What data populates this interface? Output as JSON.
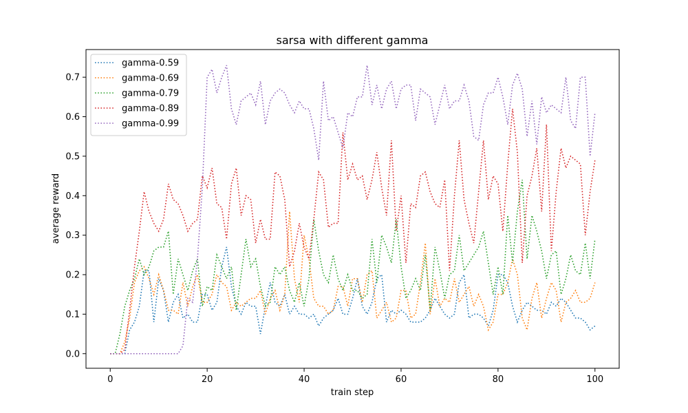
{
  "chart_data": {
    "type": "line",
    "title": "sarsa with different gamma",
    "xlabel": "train step",
    "ylabel": "average reward",
    "xlim": [
      -5,
      105
    ],
    "ylim": [
      -0.037,
      0.77
    ],
    "x_ticks": [
      0,
      20,
      40,
      60,
      80,
      100
    ],
    "y_ticks": [
      0.0,
      0.1,
      0.2,
      0.3,
      0.4,
      0.5,
      0.6,
      0.7
    ],
    "grid": false,
    "legend_position": "top-left",
    "line_style": "dotted",
    "x": [
      0,
      1,
      2,
      3,
      4,
      5,
      6,
      7,
      8,
      9,
      10,
      11,
      12,
      13,
      14,
      15,
      16,
      17,
      18,
      19,
      20,
      21,
      22,
      23,
      24,
      25,
      26,
      27,
      28,
      29,
      30,
      31,
      32,
      33,
      34,
      35,
      36,
      37,
      38,
      39,
      40,
      41,
      42,
      43,
      44,
      45,
      46,
      47,
      48,
      49,
      50,
      51,
      52,
      53,
      54,
      55,
      56,
      57,
      58,
      59,
      60,
      61,
      62,
      63,
      64,
      65,
      66,
      67,
      68,
      69,
      70,
      71,
      72,
      73,
      74,
      75,
      76,
      77,
      78,
      79,
      80,
      81,
      82,
      83,
      84,
      85,
      86,
      87,
      88,
      89,
      90,
      91,
      92,
      93,
      94,
      95,
      96,
      97,
      98,
      99,
      100
    ],
    "series": [
      {
        "name": "gamma-0.59",
        "color": "#1f77b4",
        "values": [
          0.0,
          0.0,
          0.0,
          0.0,
          0.06,
          0.08,
          0.12,
          0.21,
          0.21,
          0.08,
          0.19,
          0.16,
          0.08,
          0.13,
          0.15,
          0.09,
          0.1,
          0.08,
          0.08,
          0.15,
          0.15,
          0.11,
          0.13,
          0.22,
          0.27,
          0.17,
          0.12,
          0.1,
          0.13,
          0.12,
          0.12,
          0.05,
          0.12,
          0.18,
          0.13,
          0.12,
          0.15,
          0.1,
          0.12,
          0.1,
          0.1,
          0.09,
          0.1,
          0.07,
          0.09,
          0.1,
          0.11,
          0.14,
          0.1,
          0.1,
          0.14,
          0.19,
          0.12,
          0.1,
          0.13,
          0.19,
          0.2,
          0.08,
          0.11,
          0.1,
          0.11,
          0.1,
          0.08,
          0.08,
          0.08,
          0.09,
          0.11,
          0.14,
          0.12,
          0.1,
          0.09,
          0.1,
          0.18,
          0.2,
          0.09,
          0.1,
          0.1,
          0.09,
          0.07,
          0.11,
          0.2,
          0.2,
          0.18,
          0.12,
          0.08,
          0.11,
          0.13,
          0.12,
          0.11,
          0.11,
          0.1,
          0.13,
          0.12,
          0.14,
          0.13,
          0.11,
          0.09,
          0.09,
          0.08,
          0.06,
          0.07
        ]
      },
      {
        "name": "gamma-0.69",
        "color": "#ff7f0e",
        "values": [
          0.0,
          0.0,
          0.0,
          0.03,
          0.09,
          0.18,
          0.21,
          0.22,
          0.19,
          0.15,
          0.2,
          0.16,
          0.11,
          0.11,
          0.1,
          0.18,
          0.12,
          0.17,
          0.2,
          0.13,
          0.13,
          0.15,
          0.2,
          0.18,
          0.17,
          0.11,
          0.13,
          0.12,
          0.13,
          0.14,
          0.14,
          0.16,
          0.1,
          0.14,
          0.16,
          0.11,
          0.15,
          0.36,
          0.19,
          0.13,
          0.3,
          0.24,
          0.14,
          0.12,
          0.12,
          0.1,
          0.11,
          0.17,
          0.17,
          0.12,
          0.19,
          0.19,
          0.13,
          0.2,
          0.21,
          0.09,
          0.11,
          0.13,
          0.08,
          0.09,
          0.16,
          0.16,
          0.09,
          0.1,
          0.18,
          0.28,
          0.1,
          0.19,
          0.12,
          0.14,
          0.13,
          0.19,
          0.13,
          0.15,
          0.17,
          0.12,
          0.15,
          0.12,
          0.06,
          0.08,
          0.15,
          0.15,
          0.18,
          0.24,
          0.2,
          0.09,
          0.06,
          0.14,
          0.18,
          0.09,
          0.14,
          0.18,
          0.16,
          0.08,
          0.13,
          0.14,
          0.16,
          0.13,
          0.13,
          0.14,
          0.18
        ]
      },
      {
        "name": "gamma-0.79",
        "color": "#2ca02c",
        "values": [
          0.0,
          0.0,
          0.05,
          0.12,
          0.16,
          0.19,
          0.24,
          0.2,
          0.22,
          0.26,
          0.27,
          0.27,
          0.31,
          0.15,
          0.24,
          0.2,
          0.16,
          0.21,
          0.24,
          0.12,
          0.17,
          0.16,
          0.25,
          0.22,
          0.19,
          0.22,
          0.11,
          0.2,
          0.29,
          0.22,
          0.24,
          0.17,
          0.12,
          0.13,
          0.22,
          0.2,
          0.22,
          0.16,
          0.13,
          0.18,
          0.12,
          0.19,
          0.34,
          0.26,
          0.2,
          0.18,
          0.25,
          0.19,
          0.16,
          0.2,
          0.16,
          0.16,
          0.14,
          0.15,
          0.29,
          0.18,
          0.3,
          0.27,
          0.23,
          0.34,
          0.22,
          0.14,
          0.16,
          0.19,
          0.16,
          0.25,
          0.11,
          0.27,
          0.21,
          0.14,
          0.2,
          0.21,
          0.3,
          0.21,
          0.23,
          0.25,
          0.27,
          0.31,
          0.23,
          0.15,
          0.22,
          0.15,
          0.35,
          0.23,
          0.36,
          0.44,
          0.24,
          0.35,
          0.31,
          0.26,
          0.19,
          0.25,
          0.26,
          0.15,
          0.19,
          0.25,
          0.21,
          0.2,
          0.28,
          0.19,
          0.29
        ]
      },
      {
        "name": "gamma-0.89",
        "color": "#d62728",
        "values": [
          0.0,
          0.0,
          0.0,
          0.01,
          0.11,
          0.22,
          0.31,
          0.41,
          0.36,
          0.33,
          0.31,
          0.34,
          0.43,
          0.39,
          0.38,
          0.35,
          0.31,
          0.33,
          0.34,
          0.45,
          0.42,
          0.47,
          0.38,
          0.37,
          0.29,
          0.43,
          0.47,
          0.35,
          0.4,
          0.39,
          0.28,
          0.34,
          0.29,
          0.29,
          0.46,
          0.45,
          0.39,
          0.22,
          0.26,
          0.33,
          0.27,
          0.24,
          0.34,
          0.46,
          0.44,
          0.32,
          0.33,
          0.33,
          0.56,
          0.44,
          0.48,
          0.44,
          0.45,
          0.39,
          0.44,
          0.51,
          0.42,
          0.35,
          0.54,
          0.31,
          0.4,
          0.23,
          0.38,
          0.37,
          0.45,
          0.46,
          0.41,
          0.38,
          0.37,
          0.44,
          0.21,
          0.4,
          0.54,
          0.39,
          0.33,
          0.28,
          0.41,
          0.54,
          0.39,
          0.45,
          0.43,
          0.31,
          0.48,
          0.62,
          0.51,
          0.23,
          0.4,
          0.45,
          0.52,
          0.36,
          0.58,
          0.26,
          0.41,
          0.52,
          0.47,
          0.5,
          0.49,
          0.48,
          0.3,
          0.41,
          0.49
        ]
      },
      {
        "name": "gamma-0.99",
        "color": "#9467bd",
        "values": [
          0.0,
          0.0,
          0.0,
          0.0,
          0.0,
          0.0,
          0.0,
          0.0,
          0.0,
          0.0,
          0.0,
          0.0,
          0.0,
          0.0,
          0.0,
          0.02,
          0.14,
          0.13,
          0.24,
          0.42,
          0.7,
          0.72,
          0.66,
          0.7,
          0.73,
          0.62,
          0.58,
          0.64,
          0.65,
          0.66,
          0.63,
          0.69,
          0.58,
          0.64,
          0.66,
          0.67,
          0.66,
          0.63,
          0.61,
          0.64,
          0.62,
          0.62,
          0.57,
          0.49,
          0.69,
          0.59,
          0.6,
          0.56,
          0.52,
          0.61,
          0.6,
          0.65,
          0.65,
          0.73,
          0.63,
          0.68,
          0.62,
          0.67,
          0.69,
          0.62,
          0.67,
          0.68,
          0.68,
          0.59,
          0.67,
          0.66,
          0.65,
          0.58,
          0.63,
          0.68,
          0.62,
          0.64,
          0.64,
          0.68,
          0.64,
          0.55,
          0.54,
          0.63,
          0.66,
          0.66,
          0.7,
          0.65,
          0.58,
          0.68,
          0.71,
          0.67,
          0.55,
          0.64,
          0.53,
          0.65,
          0.61,
          0.63,
          0.62,
          0.61,
          0.7,
          0.59,
          0.57,
          0.7,
          0.7,
          0.5,
          0.61
        ]
      }
    ]
  }
}
